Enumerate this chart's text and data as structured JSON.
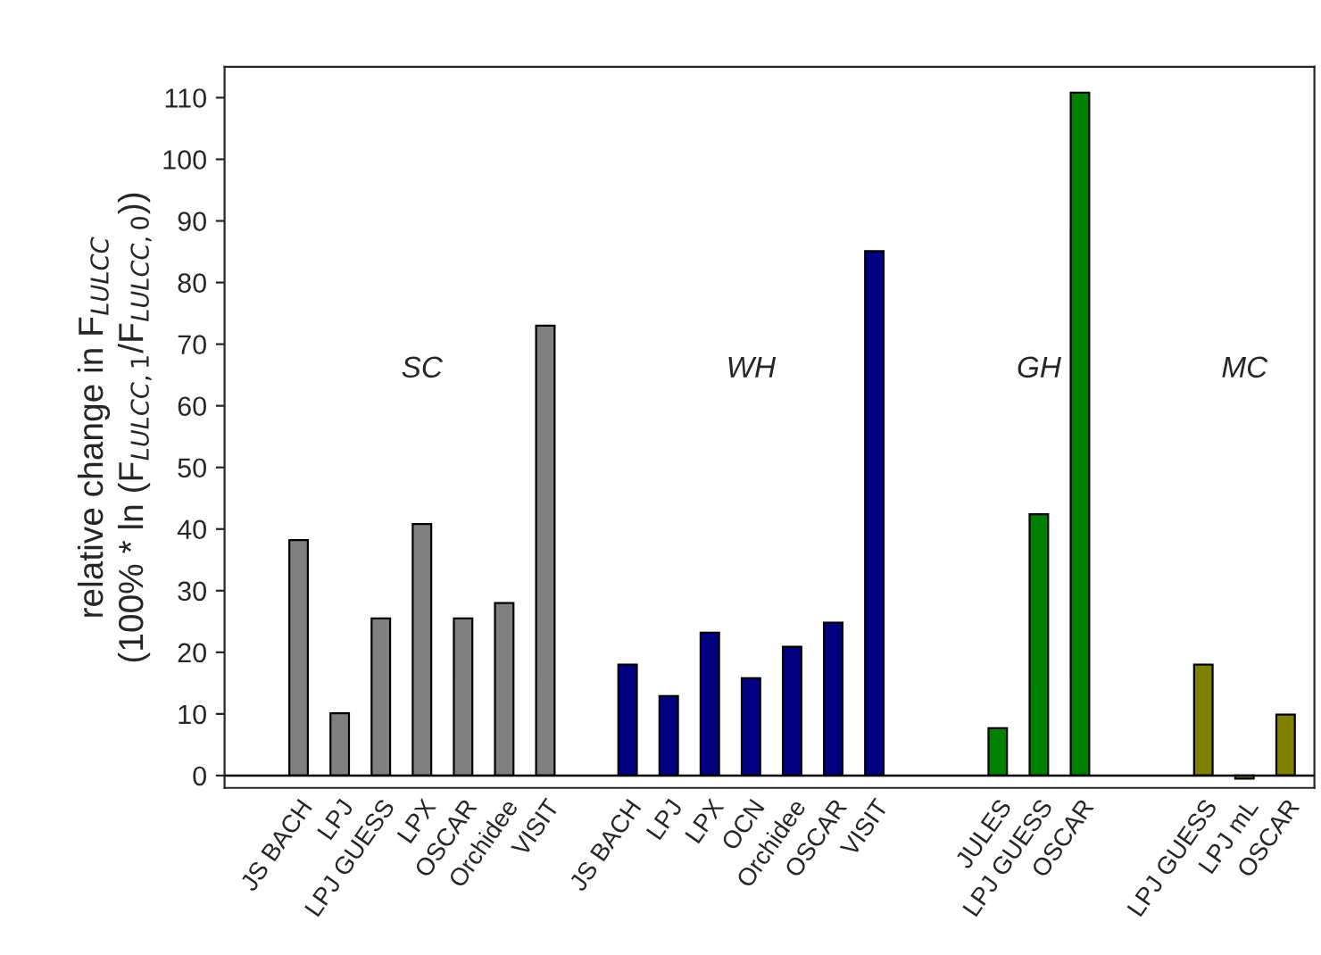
{
  "chart_data": {
    "type": "bar",
    "ylabel": "relative change in F$_{LULCC}$\n(100% * ln (F$_{LULCC,1}$/F$_{LULCC,0}$))",
    "categories": [
      "JS BACH",
      "LPJ",
      "LPJ GUESS",
      "LPX",
      "OSCAR",
      "Orchidee",
      "VISIT",
      null,
      "JS BACH",
      "LPJ",
      "LPX",
      "OCN",
      "Orchidee",
      "OSCAR",
      "VISIT",
      null,
      null,
      "JULES",
      "LPJ GUESS",
      "OSCAR",
      null,
      null,
      "LPJ GUESS",
      "LPJ mL",
      "OSCAR"
    ],
    "values": [
      38.2,
      10.1,
      25.5,
      40.8,
      25.5,
      28.0,
      73.0,
      null,
      18.0,
      12.9,
      23.2,
      15.8,
      20.9,
      24.8,
      85.1,
      null,
      null,
      7.7,
      42.4,
      110.8,
      null,
      null,
      18.0,
      -0.5,
      9.9
    ],
    "colors": [
      "#808080",
      "#808080",
      "#808080",
      "#808080",
      "#808080",
      "#808080",
      "#808080",
      null,
      "#000080",
      "#000080",
      "#000080",
      "#000080",
      "#000080",
      "#000080",
      "#000080",
      null,
      null,
      "#008000",
      "#008000",
      "#008000",
      null,
      null,
      "#808000",
      "#808000",
      "#808000"
    ],
    "annotations": [
      "SC",
      "WH",
      "GH",
      "MC"
    ],
    "ylim": [
      -2,
      115
    ],
    "yticks": [
      0,
      10,
      20,
      30,
      40,
      50,
      60,
      70,
      80,
      90,
      100,
      110
    ],
    "ref_lines": [
      {
        "axis": "y",
        "value": 0,
        "color": "#000000"
      }
    ],
    "grid": false,
    "legend": false
  }
}
